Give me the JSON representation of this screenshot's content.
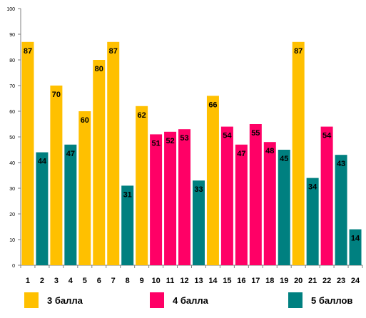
{
  "chart_data": {
    "type": "bar",
    "categories": [
      "1",
      "2",
      "3",
      "4",
      "5",
      "6",
      "7",
      "8",
      "9",
      "10",
      "11",
      "12",
      "13",
      "14",
      "15",
      "16",
      "17",
      "18",
      "19",
      "20",
      "21",
      "22",
      "23",
      "24"
    ],
    "values": [
      87,
      44,
      70,
      47,
      60,
      80,
      87,
      31,
      62,
      51,
      52,
      53,
      33,
      66,
      54,
      47,
      55,
      48,
      45,
      87,
      34,
      54,
      43,
      14
    ],
    "groups": [
      "3 балла",
      "5 баллов",
      "3 балла",
      "5 баллов",
      "3 балла",
      "3 балла",
      "3 балла",
      "5 баллов",
      "3 балла",
      "4 балла",
      "4 балла",
      "4 балла",
      "5 баллов",
      "3 балла",
      "4 балла",
      "4 балла",
      "4 балла",
      "4 балла",
      "5 баллов",
      "3 балла",
      "5 баллов",
      "4 балла",
      "5 баллов",
      "5 баллов"
    ],
    "legend": [
      {
        "name": "3 балла",
        "color": "#FFC000"
      },
      {
        "name": "4 балла",
        "color": "#FF0066"
      },
      {
        "name": "5 баллов",
        "color": "#008080"
      }
    ],
    "yticks": [
      "0",
      "10",
      "20",
      "30",
      "40",
      "50",
      "60",
      "70",
      "80",
      "90",
      "100"
    ],
    "ylim": [
      0,
      100
    ],
    "grid": false,
    "legend_position": "bottom"
  }
}
